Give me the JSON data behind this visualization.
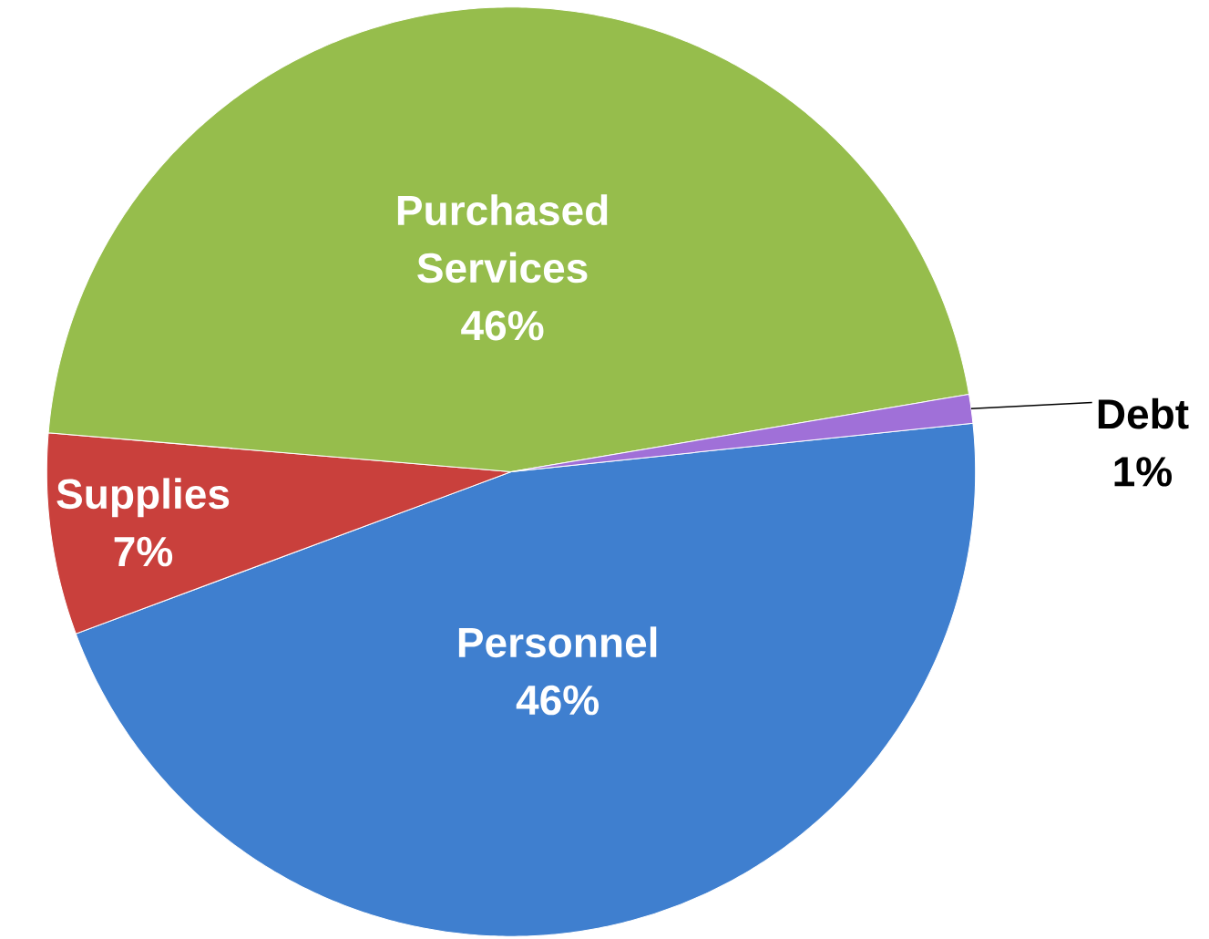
{
  "chart_data": {
    "type": "pie",
    "categories": [
      "Personnel",
      "Supplies",
      "Purchased Services",
      "Debt"
    ],
    "values": [
      46,
      7,
      46,
      1
    ],
    "value_labels": [
      "46%",
      "7%",
      "46%",
      "1%"
    ],
    "colors": [
      "#3f7fcf",
      "#c9403c",
      "#96bd4c",
      "#a070d8"
    ]
  }
}
